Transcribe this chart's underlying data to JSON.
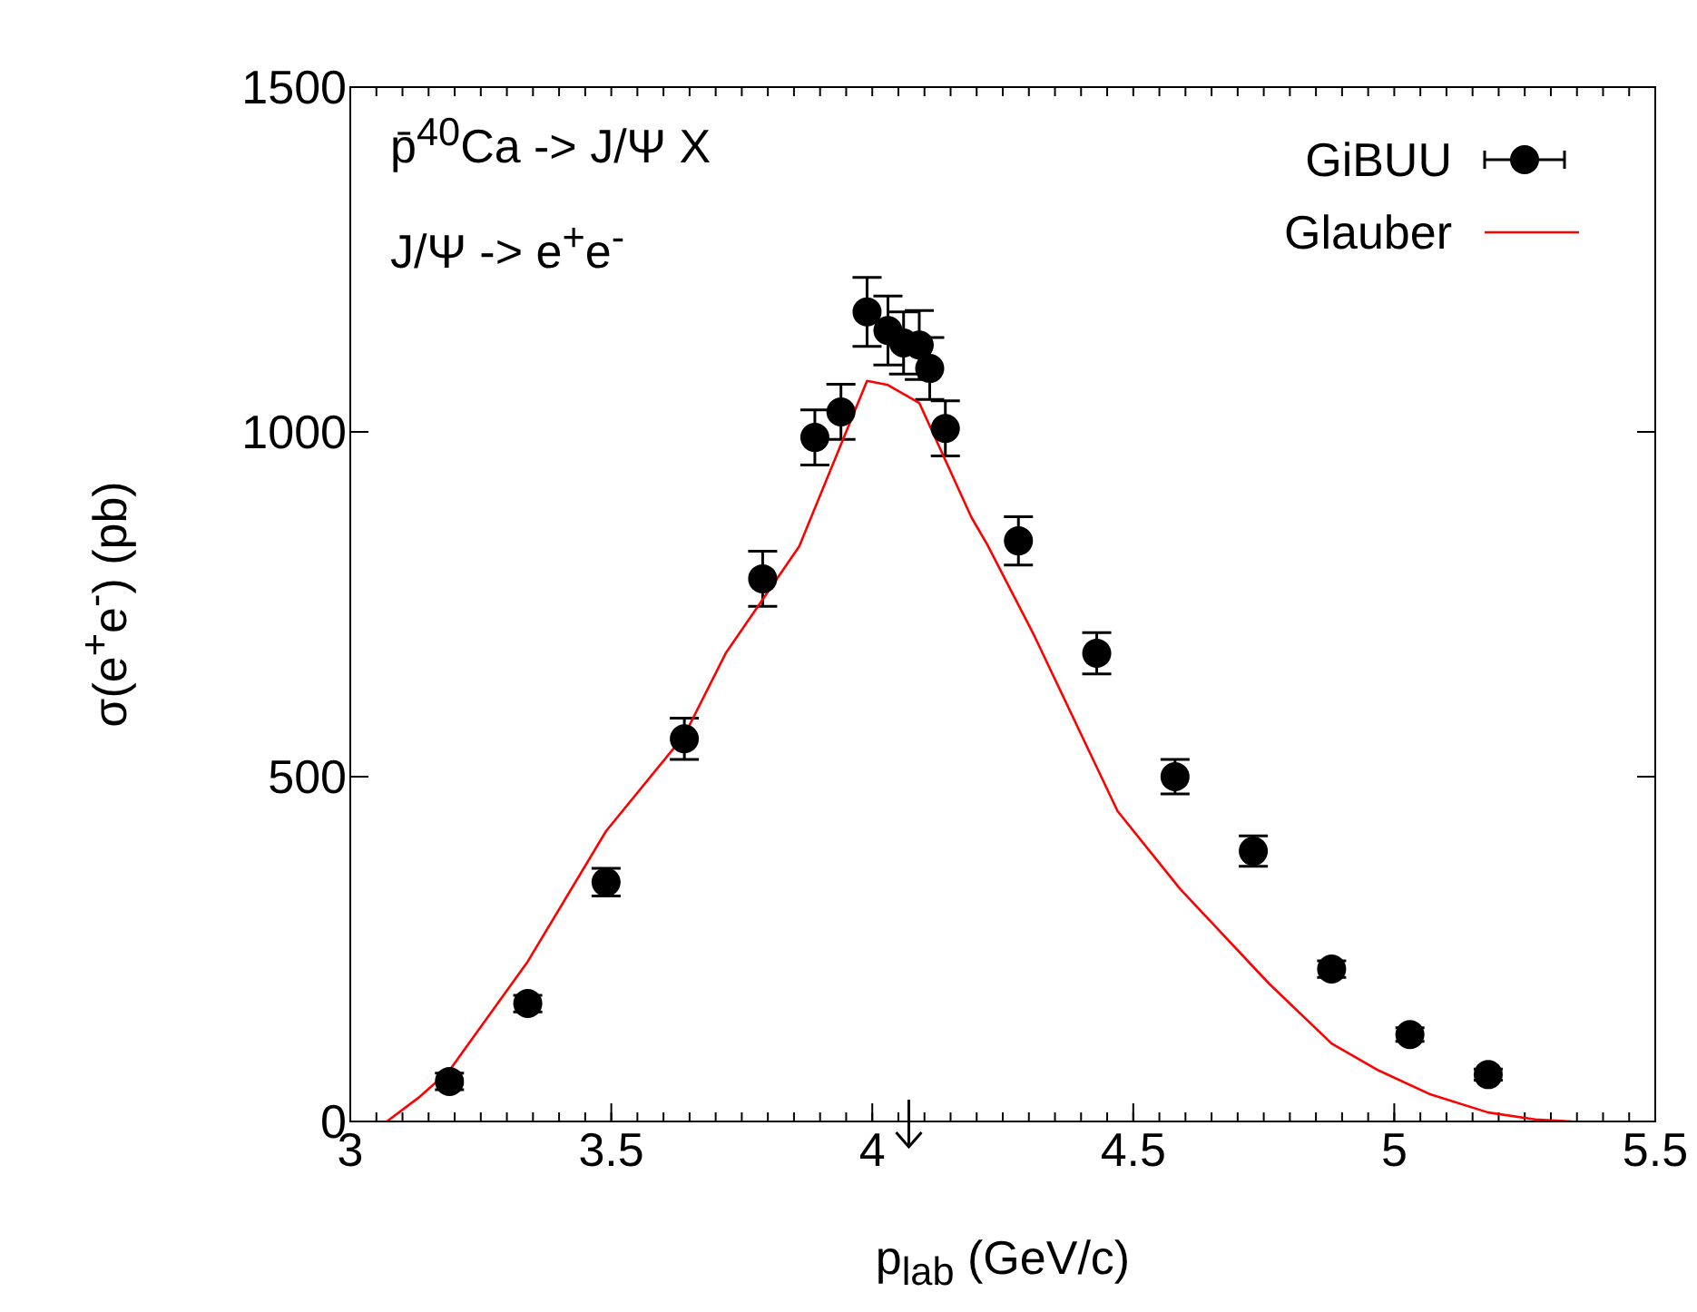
{
  "chart_data": {
    "type": "scatter",
    "xlabel": "p$_{lab}$ (GeV/c)",
    "ylabel": "σ(e$^{+}$e$^{-}$) (pb)",
    "annotations": [
      "p̄$^{40}$Ca -> J/Ψ X",
      "J/Ψ -> e$^{+}$e$^{-}$"
    ],
    "xlim": [
      3,
      5.5
    ],
    "xticks": [
      3,
      3.5,
      4,
      4.5,
      5,
      5.5
    ],
    "ylim": [
      0,
      1500
    ],
    "yticks": [
      0,
      500,
      1000,
      1500
    ],
    "grid": false,
    "legend": "top right",
    "series": [
      {
        "name": "GiBUU",
        "color": "#000000",
        "marker": "circle",
        "x": [
          3.19,
          3.34,
          3.49,
          3.64,
          3.79,
          3.89,
          3.94,
          3.99,
          4.03,
          4.06,
          4.09,
          4.11,
          4.14,
          4.28,
          4.43,
          4.58,
          4.73,
          4.88,
          5.03,
          5.18
        ],
        "values": [
          58,
          171,
          347,
          555,
          787,
          992,
          1029,
          1174,
          1147,
          1129,
          1126,
          1092,
          1005,
          842,
          679,
          500,
          392,
          221,
          126,
          68
        ],
        "errors": [
          12,
          12,
          20,
          30,
          40,
          40,
          40,
          50,
          50,
          45,
          50,
          45,
          40,
          35,
          30,
          25,
          22,
          12,
          10,
          8
        ]
      },
      {
        "name": "Glauber",
        "type": "line",
        "color": "#ff0000",
        "marker": "none",
        "line_style": "solid",
        "x": [
          3.07,
          3.13,
          3.19,
          3.34,
          3.49,
          3.64,
          3.72,
          3.86,
          3.99,
          4.03,
          4.09,
          4.19,
          4.22,
          4.31,
          4.47,
          4.59,
          4.76,
          4.88,
          4.97,
          5.07,
          5.18,
          5.27,
          5.34
        ],
        "values": [
          0,
          34,
          74,
          232,
          421,
          560,
          680,
          834,
          1074,
          1068,
          1042,
          876,
          837,
          705,
          450,
          337,
          200,
          113,
          74,
          39,
          13,
          3,
          0
        ]
      }
    ]
  }
}
